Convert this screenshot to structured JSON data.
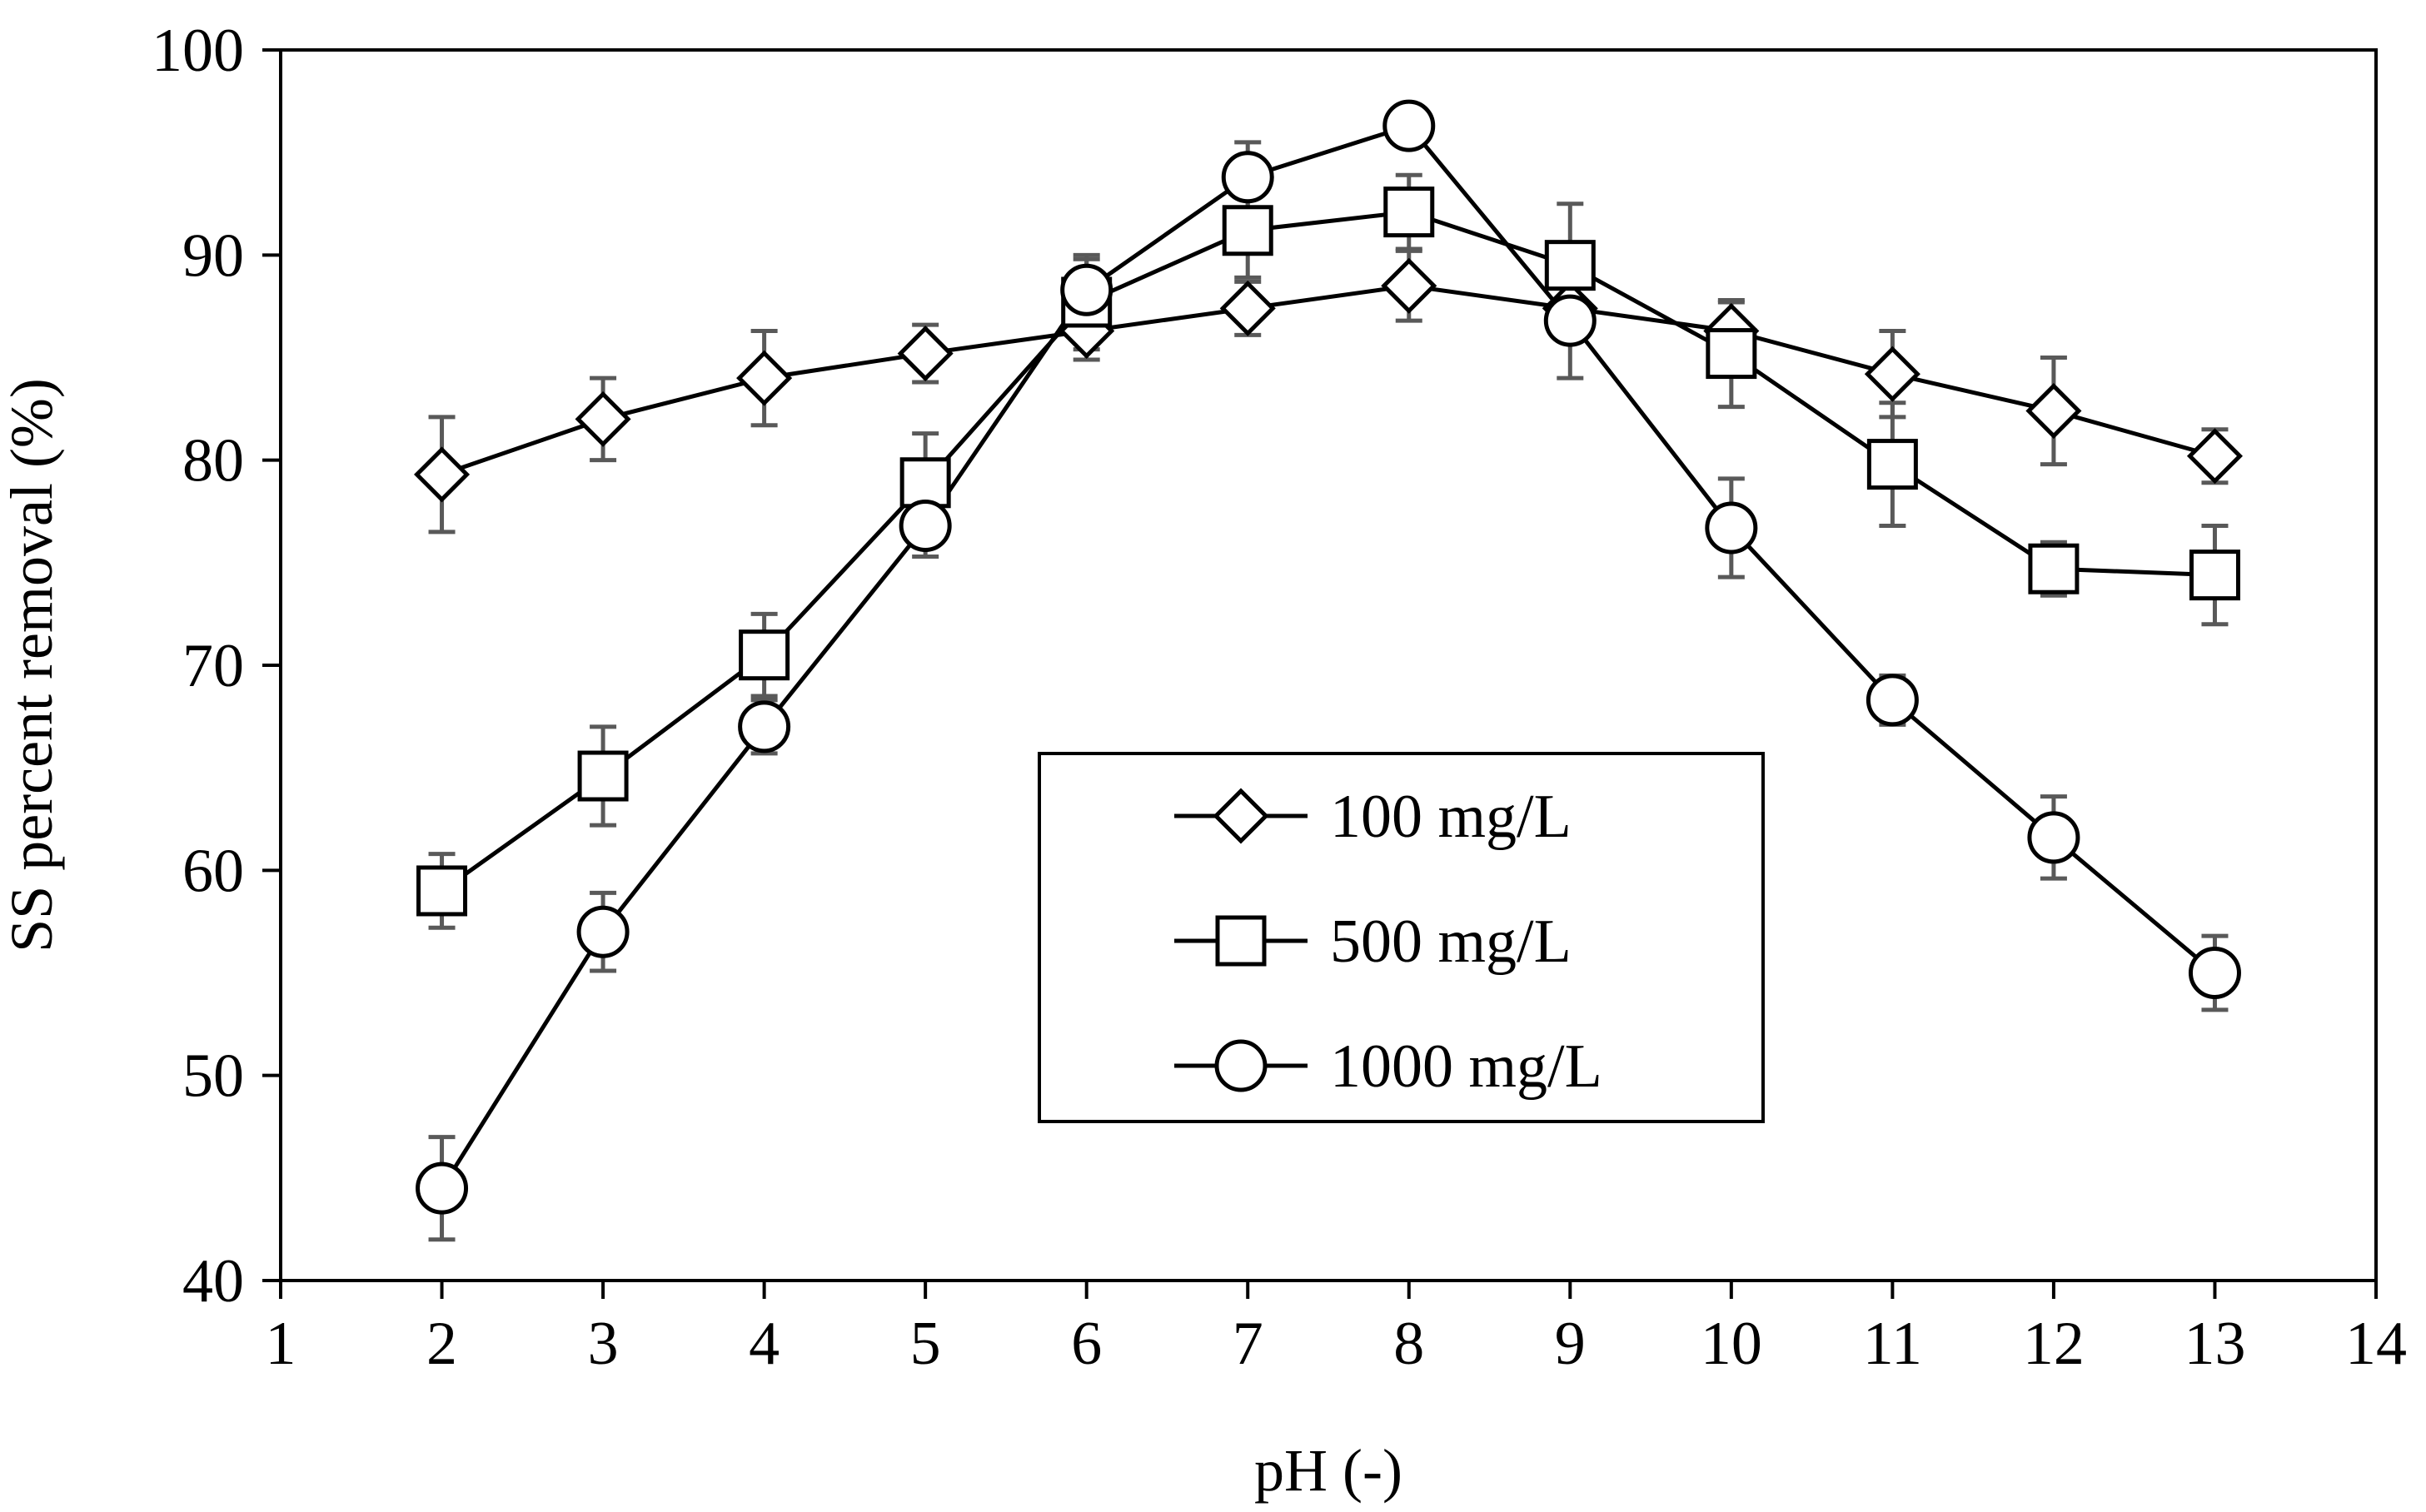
{
  "chart_data": {
    "type": "line",
    "title": "",
    "xlabel": "pH (-)",
    "ylabel": "SS percent removal (%)",
    "xlim": [
      1,
      14
    ],
    "ylim": [
      40,
      100
    ],
    "x_ticks": [
      1,
      2,
      3,
      4,
      5,
      6,
      7,
      8,
      9,
      10,
      11,
      12,
      13,
      14
    ],
    "y_ticks": [
      40,
      50,
      60,
      70,
      80,
      90,
      100
    ],
    "grid": false,
    "legend_position": "center",
    "x": [
      2,
      3,
      4,
      5,
      6,
      7,
      8,
      9,
      10,
      11,
      12,
      13
    ],
    "series": [
      {
        "name": "100 mg/L",
        "marker": "diamond",
        "values": [
          79.3,
          82.0,
          84.0,
          85.2,
          86.3,
          87.4,
          88.5,
          87.4,
          86.3,
          84.2,
          82.4,
          80.2
        ],
        "errors": [
          2.8,
          2.0,
          2.3,
          1.4,
          1.4,
          1.3,
          1.7,
          1.6,
          1.4,
          2.1,
          2.6,
          1.3
        ]
      },
      {
        "name": "500 mg/L",
        "marker": "square",
        "values": [
          59.0,
          64.6,
          70.5,
          78.9,
          87.7,
          91.2,
          92.1,
          89.5,
          85.2,
          79.8,
          74.7,
          74.4
        ],
        "errors": [
          1.8,
          2.4,
          2.0,
          2.4,
          2.3,
          2.3,
          1.8,
          3.0,
          2.6,
          3.0,
          1.3,
          2.4
        ]
      },
      {
        "name": "1000 mg/L",
        "marker": "circle",
        "values": [
          44.5,
          57.0,
          67.0,
          76.8,
          88.3,
          93.8,
          96.3,
          86.8,
          76.7,
          68.3,
          61.6,
          55.0
        ],
        "errors": [
          2.5,
          1.9,
          1.3,
          1.5,
          1.5,
          1.7,
          0.9,
          2.8,
          2.4,
          1.2,
          2.0,
          1.8
        ]
      }
    ],
    "colors": {
      "line": "#000000",
      "error_bar": "#595959",
      "frame": "#000000",
      "background": "#ffffff"
    }
  }
}
